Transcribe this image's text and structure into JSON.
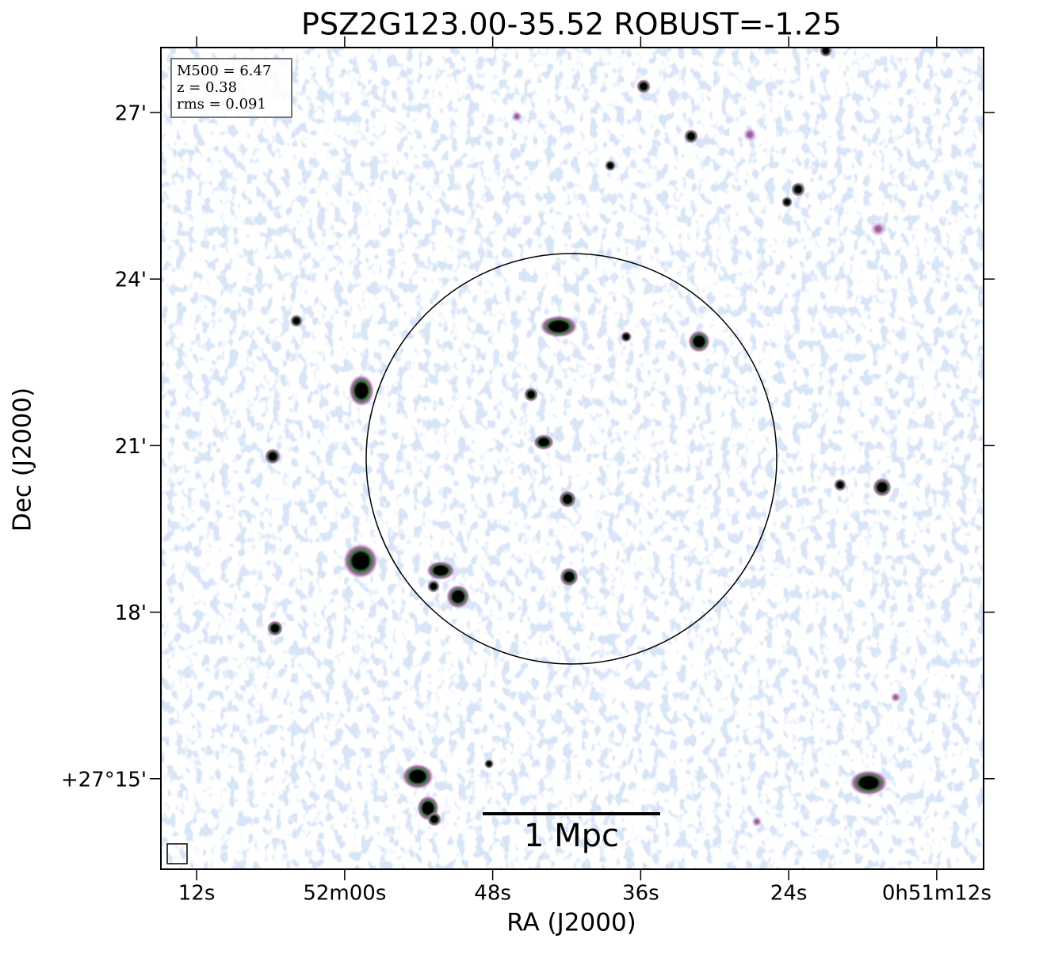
{
  "chart_data": {
    "type": "image",
    "title": "PSZ2G123.00-35.52 ROBUST=-1.25",
    "x_label": "RA (J2000)",
    "y_label": "Dec (J2000)",
    "xlim": [
      74.9,
      8.2
    ],
    "ylim": [
      13.37,
      28.17
    ],
    "xticks": [
      {
        "value": 72,
        "label": "12s"
      },
      {
        "value": 60,
        "label": "52m00s"
      },
      {
        "value": 48,
        "label": "48s"
      },
      {
        "value": 36,
        "label": "36s"
      },
      {
        "value": 24,
        "label": "24s"
      },
      {
        "value": 12,
        "label": "0h51m12s"
      }
    ],
    "yticks": [
      {
        "value": 27,
        "label": "27'"
      },
      {
        "value": 24,
        "label": "24'"
      },
      {
        "value": 21,
        "label": "21'"
      },
      {
        "value": 18,
        "label": "18'"
      },
      {
        "value": 15,
        "label": "+27°15'"
      }
    ],
    "annotations": [
      "M500 = 6.47",
      "z = 0.38",
      "rms = 0.091"
    ],
    "scalebar_label": "1 Mpc"
  }
}
